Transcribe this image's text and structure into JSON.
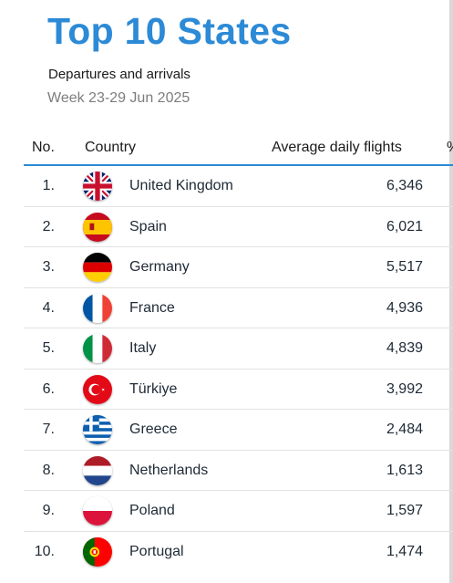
{
  "header": {
    "title": "Top 10 States",
    "subtitle": "Departures and arrivals",
    "week": "Week 23-29 Jun 2025"
  },
  "table": {
    "columns": {
      "no": "No.",
      "country": "Country",
      "flights": "Average daily flights",
      "pct": "%"
    },
    "rows": [
      {
        "rank": "1.",
        "country": "United Kingdom",
        "flights": "6,346",
        "flag": "uk-flag-icon"
      },
      {
        "rank": "2.",
        "country": "Spain",
        "flights": "6,021",
        "flag": "spain-flag-icon"
      },
      {
        "rank": "3.",
        "country": "Germany",
        "flights": "5,517",
        "flag": "germany-flag-icon"
      },
      {
        "rank": "4.",
        "country": "France",
        "flights": "4,936",
        "flag": "france-flag-icon"
      },
      {
        "rank": "5.",
        "country": "Italy",
        "flights": "4,839",
        "flag": "italy-flag-icon"
      },
      {
        "rank": "6.",
        "country": "Türkiye",
        "flights": "3,992",
        "flag": "turkiye-flag-icon"
      },
      {
        "rank": "7.",
        "country": "Greece",
        "flights": "2,484",
        "flag": "greece-flag-icon"
      },
      {
        "rank": "8.",
        "country": "Netherlands",
        "flights": "1,613",
        "flag": "netherlands-flag-icon"
      },
      {
        "rank": "9.",
        "country": "Poland",
        "flights": "1,597",
        "flag": "poland-flag-icon"
      },
      {
        "rank": "10.",
        "country": "Portugal",
        "flights": "1,474",
        "flag": "portugal-flag-icon"
      }
    ]
  },
  "colors": {
    "title": "#2c8ad6",
    "rule": "#2c8ad6",
    "text": "#1e2a36"
  }
}
